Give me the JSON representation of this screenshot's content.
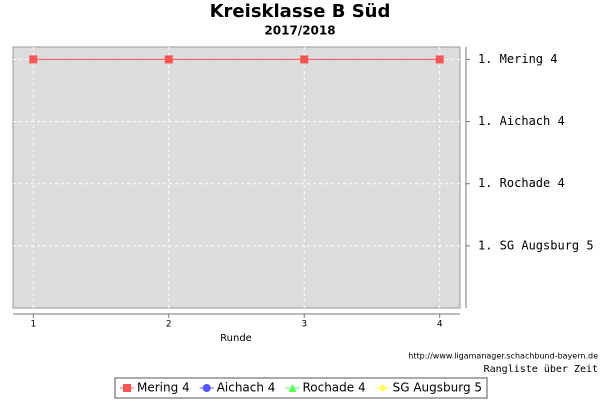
{
  "chart_data": {
    "type": "line",
    "title": "Kreisklasse B Süd",
    "subtitle": "2017/2018",
    "x": [
      1,
      2,
      3,
      4
    ],
    "xlim": [
      0.85,
      4.15
    ],
    "xticks": [
      1,
      2,
      3,
      4
    ],
    "xlabel": "Runde",
    "ylim": [
      5,
      0.8
    ],
    "y_inverted": true,
    "yticks": [
      {
        "value": 1,
        "label": "1. Mering 4"
      },
      {
        "value": 2,
        "label": "1. Aichach 4"
      },
      {
        "value": 3,
        "label": "1. Rochade 4"
      },
      {
        "value": 4,
        "label": "1. SG Augsburg 5"
      }
    ],
    "grid": true,
    "series": [
      {
        "name": "Mering 4",
        "color": "#ff5555",
        "marker": "square",
        "values": [
          1,
          1,
          1,
          1
        ]
      },
      {
        "name": "Aichach 4",
        "color": "#5555ff",
        "marker": "circle",
        "values": [
          null,
          null,
          null,
          null
        ]
      },
      {
        "name": "Rochade 4",
        "color": "#55ff55",
        "marker": "triangle",
        "values": [
          null,
          null,
          null,
          null
        ]
      },
      {
        "name": "SG Augsburg 5",
        "color": "#ffff55",
        "marker": "diamond",
        "values": [
          null,
          null,
          null,
          null
        ]
      }
    ],
    "source": "http://www.ligamanager.schachbund-bayern.de",
    "footnote": "Rangliste über Zeit",
    "legend": "bottom"
  }
}
